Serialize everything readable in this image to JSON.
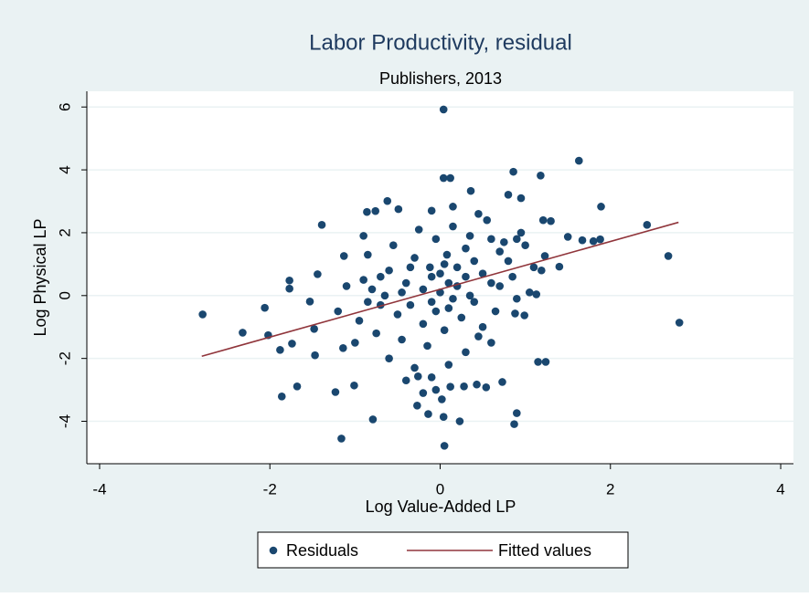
{
  "chart_data": {
    "type": "scatter",
    "title": "Labor Productivity, residual",
    "subtitle": "Publishers, 2013",
    "x_label": "Log Value-Added LP",
    "y_label": "Log Physical LP",
    "xlim": [
      -4.15,
      4.15
    ],
    "ylim": [
      -5.35,
      6.5
    ],
    "xticks": [
      -4,
      -2,
      0,
      2,
      4
    ],
    "yticks": [
      -4,
      -2,
      0,
      2,
      4,
      6
    ],
    "grid": true,
    "series": [
      {
        "name": "Residuals",
        "color": "#1a476f",
        "kind": "scatter",
        "x": [
          -2.79,
          -2.32,
          -2.02,
          -2.06,
          -1.88,
          -1.86,
          -1.68,
          -1.77,
          -1.77,
          -1.74,
          -1.48,
          -1.44,
          -1.39,
          -1.53,
          -1.47,
          -1.16,
          -1.23,
          -1.13,
          -1.14,
          -1.01,
          -0.79,
          -0.86,
          -0.76,
          -0.62,
          -0.49,
          -0.26,
          -0.27,
          -0.14,
          0.04,
          0.04,
          0.12,
          0.05,
          0.04,
          0.23,
          0.36,
          0.15,
          0.8,
          0.86,
          0.95,
          1.18,
          1.63,
          1.89,
          2.43,
          2.68,
          2.81,
          1.15,
          1.24,
          0.9,
          0.87,
          0.73,
          0.54,
          0.28,
          0.43,
          1.4,
          1.5,
          1.8,
          1.88,
          1.21,
          1.3,
          1.67,
          1.23,
          1.19,
          1.13,
          0.99,
          0.88,
          -0.9,
          -0.8,
          -0.7,
          -0.6,
          -0.5,
          -0.4,
          -0.3,
          -0.2,
          -0.1,
          0,
          0.1,
          0.2,
          0.3,
          0.4,
          0.5,
          0.6,
          0.7,
          0.8,
          0.9,
          1.0,
          -0.95,
          -0.85,
          -0.75,
          -0.65,
          -0.55,
          -0.45,
          -0.35,
          -0.25,
          -0.15,
          -0.05,
          0.05,
          0.15,
          0.25,
          0.35,
          0.45,
          0.55,
          0.65,
          0.75,
          0.85,
          0.95,
          -1.1,
          -1.2,
          -1.0,
          -0.9,
          -0.6,
          -0.3,
          -0.1,
          0.1,
          0.3,
          0.5,
          -0.2,
          -0.1,
          0.0,
          0.05,
          0.1,
          0.15,
          0.2,
          -0.05,
          0.08,
          -0.12,
          0.3,
          0.4,
          0.6,
          0.7,
          0.35,
          -0.35,
          -0.45,
          -0.7,
          -0.85,
          1.1,
          1.05,
          0.9,
          0.6,
          -0.05,
          0.02,
          -0.2,
          0.12,
          -0.4,
          0.45,
          -0.1
        ],
        "values": [
          -0.6,
          -1.18,
          -1.26,
          -0.39,
          -1.73,
          -3.21,
          -2.89,
          0.48,
          0.22,
          -1.53,
          -1.06,
          0.68,
          2.25,
          -0.19,
          -1.9,
          -4.55,
          -3.07,
          1.26,
          -1.67,
          -2.86,
          -3.94,
          2.66,
          2.69,
          3.01,
          2.75,
          -2.57,
          -3.5,
          -3.77,
          5.92,
          3.74,
          3.74,
          -4.78,
          -3.86,
          -4.0,
          3.33,
          2.83,
          3.21,
          3.94,
          3.1,
          3.82,
          4.29,
          2.83,
          2.25,
          1.26,
          -0.86,
          -2.11,
          -2.11,
          -3.74,
          -4.09,
          -2.75,
          -2.92,
          -2.89,
          -2.83,
          0.92,
          1.87,
          1.73,
          1.79,
          2.4,
          2.37,
          1.76,
          1.26,
          0.8,
          0.04,
          -0.63,
          -0.57,
          0.5,
          0.2,
          -0.3,
          0.8,
          -0.6,
          0.4,
          1.2,
          -0.9,
          0.6,
          0.1,
          -0.4,
          0.9,
          1.5,
          -0.2,
          0.7,
          1.8,
          0.3,
          1.1,
          -0.1,
          1.6,
          -0.8,
          1.3,
          -1.2,
          0.0,
          1.6,
          -1.4,
          0.9,
          2.1,
          -1.6,
          1.8,
          -1.1,
          2.2,
          -0.7,
          1.9,
          -1.3,
          2.4,
          -0.5,
          1.7,
          0.6,
          2.0,
          0.3,
          -0.5,
          -1.5,
          1.9,
          -2.0,
          -2.3,
          -2.6,
          -2.2,
          -1.8,
          -1.0,
          0.2,
          -0.2,
          0.7,
          1.0,
          0.4,
          -0.1,
          0.3,
          -0.5,
          1.3,
          0.9,
          0.6,
          1.1,
          0.4,
          1.4,
          0.0,
          -0.3,
          0.1,
          0.6,
          -0.2,
          0.9,
          0.1,
          1.8,
          -1.5,
          -3.0,
          -3.3,
          -3.1,
          -2.9,
          -2.7,
          2.6,
          2.7
        ]
      },
      {
        "name": "Fitted values",
        "color": "#90353b",
        "kind": "line",
        "x": [
          -2.8,
          2.8
        ],
        "values": [
          -1.93,
          2.33
        ]
      }
    ]
  }
}
